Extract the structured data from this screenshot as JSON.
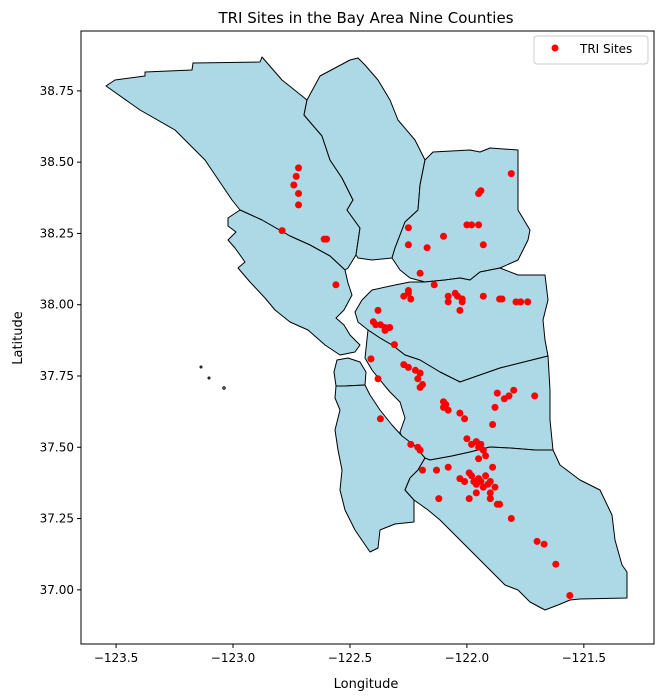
{
  "chart_data": {
    "type": "scatter",
    "title": "TRI Sites in the Bay Area Nine Counties",
    "xlabel": "Longitude",
    "ylabel": "Latitude",
    "xlim": [
      -123.65,
      -121.2
    ],
    "ylim": [
      36.81,
      38.96
    ],
    "xticks": [
      -123.5,
      -123.0,
      -122.5,
      -122.0,
      -121.5
    ],
    "xtick_labels": [
      "−123.5",
      "−123.0",
      "−122.5",
      "−122.0",
      "−121.5"
    ],
    "yticks": [
      37.0,
      37.25,
      37.5,
      37.75,
      38.0,
      38.25,
      38.5,
      38.75
    ],
    "ytick_labels": [
      "37.00",
      "37.25",
      "37.50",
      "37.75",
      "38.00",
      "38.25",
      "38.50",
      "38.75"
    ],
    "grid": false,
    "legend_position": "top-right",
    "series": [
      {
        "name": "TRI Sites",
        "color": "#ff0000",
        "marker": "circle",
        "points": [
          [
            -122.72,
            38.48
          ],
          [
            -122.73,
            38.45
          ],
          [
            -122.74,
            38.42
          ],
          [
            -122.72,
            38.39
          ],
          [
            -122.72,
            38.35
          ],
          [
            -122.79,
            38.26
          ],
          [
            -122.61,
            38.23
          ],
          [
            -122.6,
            38.23
          ],
          [
            -122.25,
            38.27
          ],
          [
            -122.25,
            38.21
          ],
          [
            -122.17,
            38.2
          ],
          [
            -122.1,
            38.24
          ],
          [
            -122.0,
            38.28
          ],
          [
            -121.98,
            38.28
          ],
          [
            -121.95,
            38.28
          ],
          [
            -121.95,
            38.39
          ],
          [
            -121.94,
            38.4
          ],
          [
            -121.81,
            38.46
          ],
          [
            -121.93,
            38.21
          ],
          [
            -122.2,
            38.11
          ],
          [
            -122.14,
            38.07
          ],
          [
            -122.25,
            38.05
          ],
          [
            -122.25,
            38.04
          ],
          [
            -122.27,
            38.03
          ],
          [
            -122.24,
            38.02
          ],
          [
            -122.56,
            38.07
          ],
          [
            -122.38,
            37.98
          ],
          [
            -122.08,
            38.03
          ],
          [
            -122.08,
            38.01
          ],
          [
            -122.05,
            38.04
          ],
          [
            -122.04,
            38.03
          ],
          [
            -122.02,
            38.02
          ],
          [
            -122.02,
            38.01
          ],
          [
            -122.03,
            37.98
          ],
          [
            -121.93,
            38.03
          ],
          [
            -121.86,
            38.02
          ],
          [
            -121.85,
            38.02
          ],
          [
            -121.79,
            38.01
          ],
          [
            -121.77,
            38.01
          ],
          [
            -121.74,
            38.01
          ],
          [
            -122.4,
            37.94
          ],
          [
            -122.39,
            37.93
          ],
          [
            -122.37,
            37.93
          ],
          [
            -122.35,
            37.92
          ],
          [
            -122.33,
            37.92
          ],
          [
            -122.35,
            37.91
          ],
          [
            -122.31,
            37.86
          ],
          [
            -122.41,
            37.81
          ],
          [
            -122.38,
            37.74
          ],
          [
            -122.37,
            37.6
          ],
          [
            -122.27,
            37.79
          ],
          [
            -122.25,
            37.78
          ],
          [
            -122.22,
            37.77
          ],
          [
            -122.2,
            37.76
          ],
          [
            -122.21,
            37.74
          ],
          [
            -122.19,
            37.72
          ],
          [
            -122.2,
            37.71
          ],
          [
            -122.1,
            37.66
          ],
          [
            -122.09,
            37.65
          ],
          [
            -122.1,
            37.64
          ],
          [
            -122.08,
            37.63
          ],
          [
            -122.03,
            37.62
          ],
          [
            -122.01,
            37.6
          ],
          [
            -121.87,
            37.69
          ],
          [
            -121.84,
            37.67
          ],
          [
            -121.82,
            37.68
          ],
          [
            -121.8,
            37.7
          ],
          [
            -121.71,
            37.68
          ],
          [
            -121.88,
            37.64
          ],
          [
            -121.89,
            37.58
          ],
          [
            -122.24,
            37.51
          ],
          [
            -122.21,
            37.5
          ],
          [
            -122.2,
            37.49
          ],
          [
            -122.0,
            37.53
          ],
          [
            -121.98,
            37.51
          ],
          [
            -121.96,
            37.52
          ],
          [
            -121.95,
            37.5
          ],
          [
            -121.94,
            37.51
          ],
          [
            -121.93,
            37.49
          ],
          [
            -121.92,
            37.47
          ],
          [
            -121.95,
            37.46
          ],
          [
            -122.19,
            37.42
          ],
          [
            -122.13,
            37.42
          ],
          [
            -122.08,
            37.43
          ],
          [
            -122.03,
            37.39
          ],
          [
            -122.01,
            37.38
          ],
          [
            -121.99,
            37.41
          ],
          [
            -121.98,
            37.4
          ],
          [
            -121.97,
            37.38
          ],
          [
            -121.96,
            37.37
          ],
          [
            -121.95,
            37.39
          ],
          [
            -121.94,
            37.38
          ],
          [
            -121.93,
            37.36
          ],
          [
            -121.92,
            37.4
          ],
          [
            -121.91,
            37.37
          ],
          [
            -121.9,
            37.38
          ],
          [
            -121.89,
            37.43
          ],
          [
            -121.88,
            37.36
          ],
          [
            -121.9,
            37.34
          ],
          [
            -121.9,
            37.32
          ],
          [
            -121.86,
            37.3
          ],
          [
            -121.87,
            37.3
          ],
          [
            -121.99,
            37.32
          ],
          [
            -122.12,
            37.32
          ],
          [
            -121.81,
            37.25
          ],
          [
            -121.7,
            37.17
          ],
          [
            -121.67,
            37.16
          ],
          [
            -121.62,
            37.09
          ],
          [
            -121.56,
            36.98
          ],
          [
            -121.96,
            37.34
          ]
        ]
      }
    ]
  }
}
